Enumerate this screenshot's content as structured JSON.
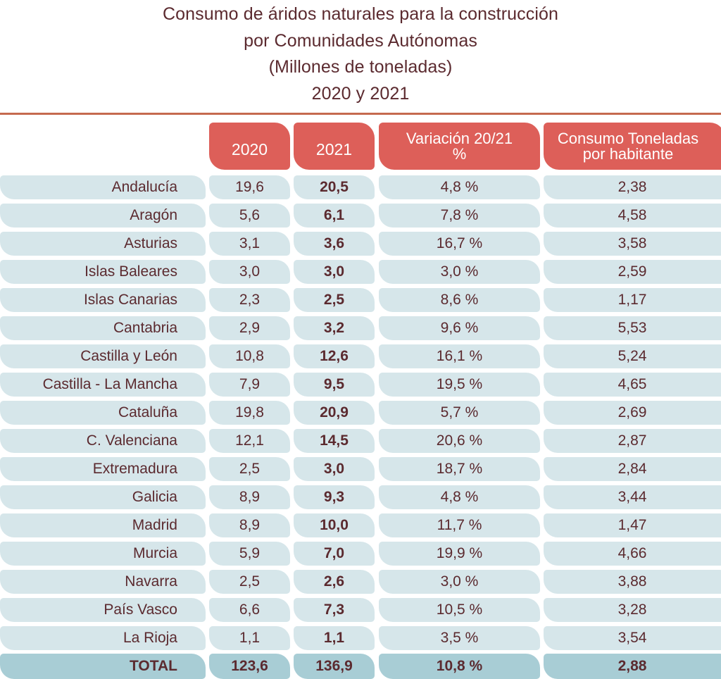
{
  "title": {
    "line1": "Consumo de áridos naturales para la construcción",
    "line2": "por Comunidades Autónomas",
    "line3": "(Millones de toneladas)",
    "line4": "2020 y 2021"
  },
  "headers": {
    "col_2020": "2020",
    "col_2021": "2021",
    "col_variacion_line1": "Variación 20/21",
    "col_variacion_line2": "%",
    "col_consumo_line1": "Consumo Toneladas",
    "col_consumo_line2": "por habitante"
  },
  "rows": [
    {
      "region": "Andalucía",
      "y2020": "19,6",
      "y2021": "20,5",
      "variacion": "4,8 %",
      "consumo": "2,38"
    },
    {
      "region": "Aragón",
      "y2020": "5,6",
      "y2021": "6,1",
      "variacion": "7,8 %",
      "consumo": "4,58"
    },
    {
      "region": "Asturias",
      "y2020": "3,1",
      "y2021": "3,6",
      "variacion": "16,7 %",
      "consumo": "3,58"
    },
    {
      "region": "Islas Baleares",
      "y2020": "3,0",
      "y2021": "3,0",
      "variacion": "3,0 %",
      "consumo": "2,59"
    },
    {
      "region": "Islas Canarias",
      "y2020": "2,3",
      "y2021": "2,5",
      "variacion": "8,6 %",
      "consumo": "1,17"
    },
    {
      "region": "Cantabria",
      "y2020": "2,9",
      "y2021": "3,2",
      "variacion": "9,6 %",
      "consumo": "5,53"
    },
    {
      "region": "Castilla y León",
      "y2020": "10,8",
      "y2021": "12,6",
      "variacion": "16,1 %",
      "consumo": "5,24"
    },
    {
      "region": "Castilla - La Mancha",
      "y2020": "7,9",
      "y2021": "9,5",
      "variacion": "19,5 %",
      "consumo": "4,65"
    },
    {
      "region": "Cataluña",
      "y2020": "19,8",
      "y2021": "20,9",
      "variacion": "5,7 %",
      "consumo": "2,69"
    },
    {
      "region": "C. Valenciana",
      "y2020": "12,1",
      "y2021": "14,5",
      "variacion": "20,6 %",
      "consumo": "2,87"
    },
    {
      "region": "Extremadura",
      "y2020": "2,5",
      "y2021": "3,0",
      "variacion": "18,7 %",
      "consumo": "2,84"
    },
    {
      "region": "Galicia",
      "y2020": "8,9",
      "y2021": "9,3",
      "variacion": "4,8 %",
      "consumo": "3,44"
    },
    {
      "region": "Madrid",
      "y2020": "8,9",
      "y2021": "10,0",
      "variacion": "11,7 %",
      "consumo": "1,47"
    },
    {
      "region": "Murcia",
      "y2020": "5,9",
      "y2021": "7,0",
      "variacion": "19,9 %",
      "consumo": "4,66"
    },
    {
      "region": "Navarra",
      "y2020": "2,5",
      "y2021": "2,6",
      "variacion": "3,0 %",
      "consumo": "3,88"
    },
    {
      "region": "País Vasco",
      "y2020": "6,6",
      "y2021": "7,3",
      "variacion": "10,5 %",
      "consumo": "3,28"
    },
    {
      "region": "La Rioja",
      "y2020": "1,1",
      "y2021": "1,1",
      "variacion": "3,5 %",
      "consumo": "3,54"
    }
  ],
  "total": {
    "region": "TOTAL",
    "y2020": "123,6",
    "y2021": "136,9",
    "variacion": "10,8 %",
    "consumo": "2,88"
  },
  "colors": {
    "title_text": "#5b2a2f",
    "header_bg": "#dd5f59",
    "row_bg": "#d6e6ea",
    "total_bg": "#a8cdd5",
    "divider": "#c56a4f"
  }
}
